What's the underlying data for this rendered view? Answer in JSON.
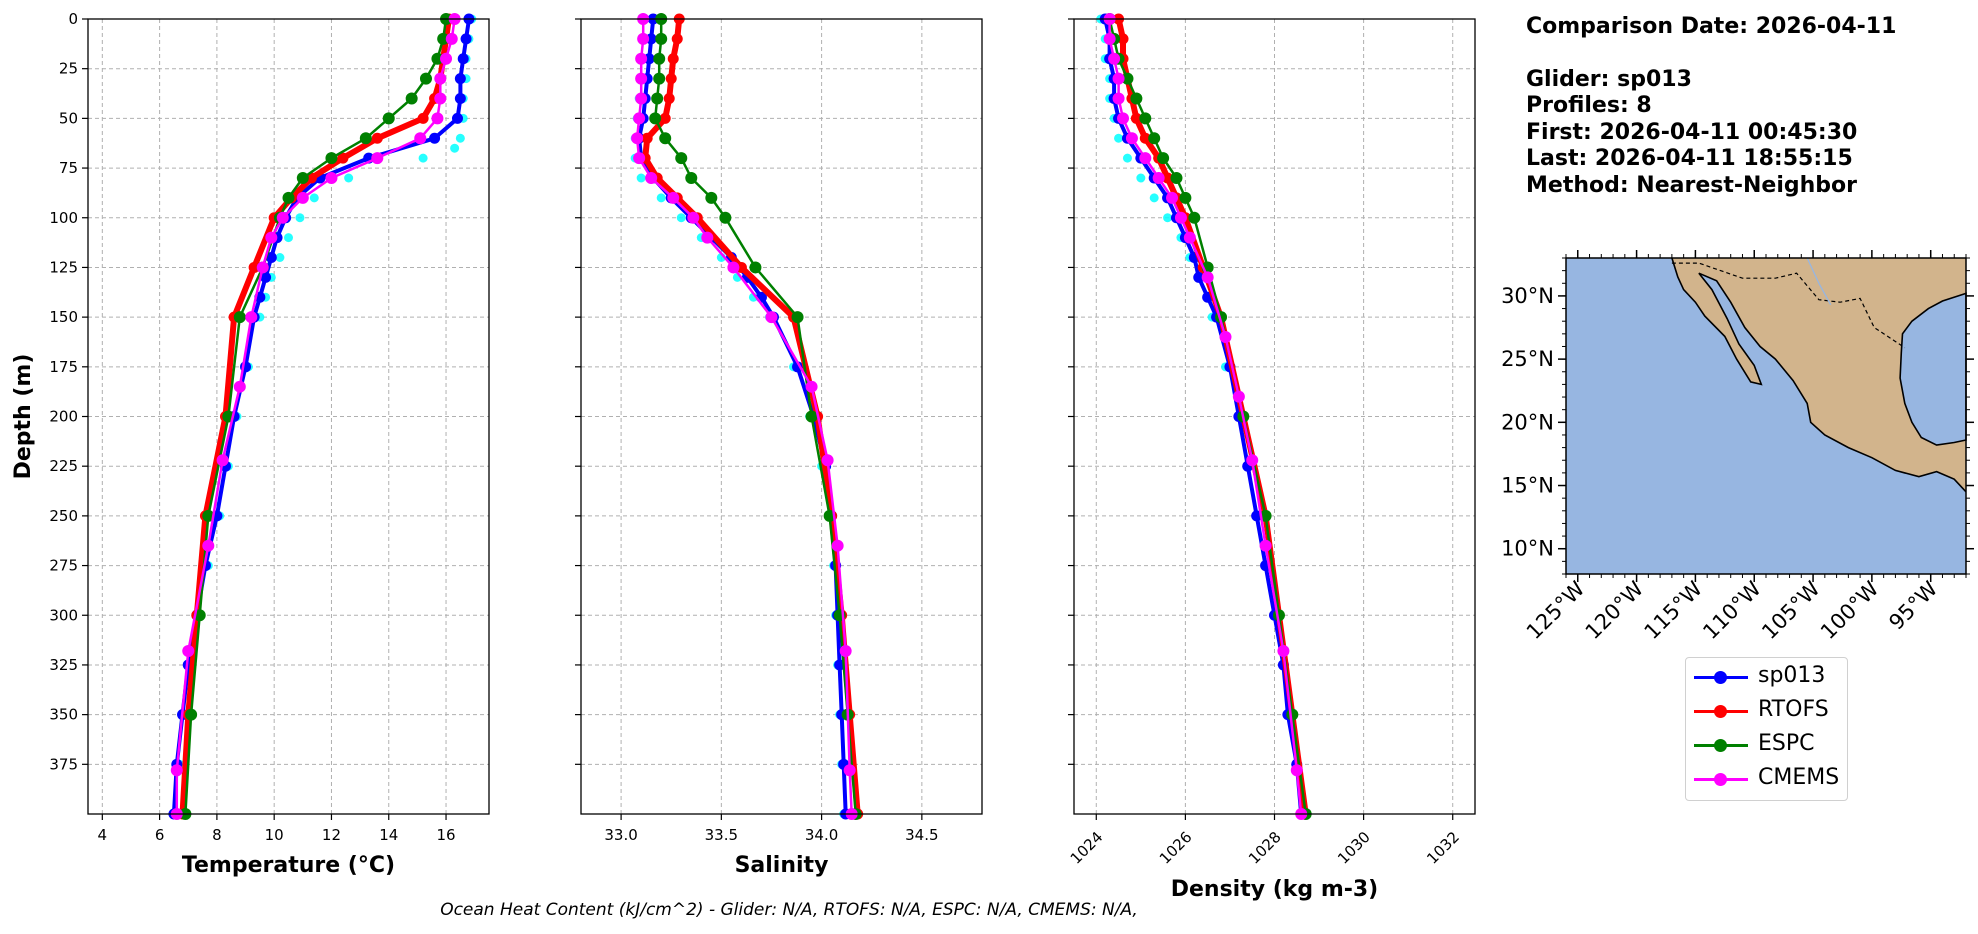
{
  "info": {
    "comparison_date": "Comparison Date: 2026-04-11",
    "glider": "Glider: sp013",
    "profiles": "Profiles: 8",
    "first": "First: 2026-04-11 00:45:30",
    "last": "Last: 2026-04-11 18:55:15",
    "method": "Method: Nearest-Neighbor"
  },
  "footer": "Ocean Heat Content (kJ/cm^2) - Glider: N/A,  RTOFS: N/A,  ESPC: N/A,  CMEMS: N/A,",
  "colors": {
    "sp013": "#0000ff",
    "RTOFS": "#ff0000",
    "ESPC": "#008000",
    "CMEMS": "#ff00ff",
    "glider_profiles": "#00ffff",
    "ocean": "#97b6e1",
    "land": "#d2b48c"
  },
  "legend": [
    {
      "name": "sp013",
      "color": "#0000ff"
    },
    {
      "name": "RTOFS",
      "color": "#ff0000"
    },
    {
      "name": "ESPC",
      "color": "#008000"
    },
    {
      "name": "CMEMS",
      "color": "#ff00ff"
    }
  ],
  "chart_data": [
    {
      "type": "line",
      "xlabel": "Temperature (°C)",
      "ylabel": "Depth (m)",
      "xlim": [
        3.5,
        17.5
      ],
      "ylim": [
        400,
        0
      ],
      "xticks": [
        4,
        6,
        8,
        10,
        12,
        14,
        16
      ],
      "yticks": [
        0,
        25,
        50,
        75,
        100,
        125,
        150,
        175,
        200,
        225,
        250,
        275,
        300,
        325,
        350,
        375
      ],
      "grid": true,
      "series": [
        {
          "name": "sp013",
          "depth": [
            0,
            10,
            20,
            30,
            40,
            50,
            60,
            70,
            80,
            90,
            100,
            110,
            120,
            130,
            140,
            150,
            175,
            200,
            225,
            250,
            275,
            300,
            325,
            350,
            375,
            400
          ],
          "values": [
            16.8,
            16.7,
            16.6,
            16.5,
            16.5,
            16.4,
            15.6,
            13.3,
            11.6,
            10.8,
            10.4,
            10.1,
            9.9,
            9.7,
            9.5,
            9.3,
            9.0,
            8.6,
            8.3,
            8.0,
            7.6,
            7.3,
            7.0,
            6.8,
            6.6,
            6.5
          ]
        },
        {
          "name": "RTOFS",
          "depth": [
            0,
            10,
            20,
            30,
            40,
            50,
            60,
            70,
            80,
            90,
            100,
            125,
            150,
            200,
            250,
            300,
            350,
            400
          ],
          "values": [
            16.1,
            16.0,
            15.9,
            15.8,
            15.6,
            15.2,
            13.6,
            12.4,
            11.3,
            10.6,
            10.0,
            9.3,
            8.6,
            8.3,
            7.6,
            7.3,
            7.0,
            6.8
          ]
        },
        {
          "name": "ESPC",
          "depth": [
            0,
            10,
            20,
            30,
            40,
            50,
            60,
            70,
            80,
            90,
            100,
            125,
            150,
            200,
            250,
            300,
            350,
            400
          ],
          "values": [
            16.0,
            15.9,
            15.7,
            15.3,
            14.8,
            14.0,
            13.2,
            12.0,
            11.0,
            10.5,
            10.2,
            9.6,
            8.8,
            8.4,
            7.7,
            7.4,
            7.1,
            6.9
          ]
        },
        {
          "name": "CMEMS",
          "depth": [
            0,
            10,
            20,
            30,
            40,
            50,
            60,
            70,
            80,
            90,
            100,
            110,
            125,
            150,
            185,
            222,
            265,
            318,
            378,
            400
          ],
          "values": [
            16.3,
            16.2,
            16.0,
            15.8,
            15.8,
            15.7,
            15.1,
            13.6,
            12.0,
            11.0,
            10.3,
            9.9,
            9.6,
            9.2,
            8.8,
            8.2,
            7.7,
            7.0,
            6.6,
            6.6
          ]
        },
        {
          "name": "glider profiles",
          "depth": [
            0,
            10,
            20,
            30,
            40,
            50,
            60,
            65,
            70,
            80,
            90,
            100,
            110,
            120,
            130,
            140,
            150,
            175,
            200,
            225,
            250,
            275,
            300,
            325,
            350,
            375,
            400
          ],
          "values": [
            16.9,
            16.8,
            16.7,
            16.7,
            16.6,
            16.6,
            16.5,
            16.3,
            15.2,
            12.6,
            11.4,
            10.9,
            10.5,
            10.2,
            9.9,
            9.7,
            9.5,
            9.1,
            8.7,
            8.4,
            8.1,
            7.7,
            7.4,
            7.1,
            6.9,
            6.7,
            6.6
          ]
        }
      ]
    },
    {
      "type": "line",
      "xlabel": "Salinity",
      "xlim": [
        32.8,
        34.8
      ],
      "ylim": [
        400,
        0
      ],
      "xticks": [
        33.0,
        33.5,
        34.0,
        34.5
      ],
      "grid": true,
      "series": [
        {
          "name": "sp013",
          "depth": [
            0,
            10,
            20,
            30,
            40,
            50,
            60,
            70,
            80,
            90,
            100,
            110,
            120,
            130,
            140,
            150,
            175,
            200,
            225,
            250,
            275,
            300,
            325,
            350,
            375,
            400
          ],
          "values": [
            33.16,
            33.15,
            33.14,
            33.13,
            33.12,
            33.11,
            33.09,
            33.1,
            33.16,
            33.25,
            33.35,
            33.45,
            33.55,
            33.63,
            33.7,
            33.76,
            33.88,
            33.96,
            34.02,
            34.05,
            34.07,
            34.08,
            34.09,
            34.1,
            34.11,
            34.12
          ]
        },
        {
          "name": "RTOFS",
          "depth": [
            0,
            10,
            20,
            30,
            40,
            50,
            60,
            70,
            80,
            90,
            100,
            125,
            150,
            200,
            250,
            300,
            350,
            400
          ],
          "values": [
            33.29,
            33.28,
            33.26,
            33.25,
            33.24,
            33.22,
            33.13,
            33.12,
            33.18,
            33.28,
            33.38,
            33.6,
            33.86,
            33.98,
            34.05,
            34.1,
            34.14,
            34.18
          ]
        },
        {
          "name": "ESPC",
          "depth": [
            0,
            10,
            20,
            30,
            40,
            50,
            60,
            70,
            80,
            90,
            100,
            125,
            150,
            200,
            250,
            300,
            350,
            400
          ],
          "values": [
            33.2,
            33.2,
            33.19,
            33.19,
            33.18,
            33.17,
            33.22,
            33.3,
            33.35,
            33.45,
            33.52,
            33.67,
            33.88,
            33.95,
            34.04,
            34.09,
            34.13,
            34.17
          ]
        },
        {
          "name": "CMEMS",
          "depth": [
            0,
            10,
            20,
            30,
            40,
            50,
            60,
            70,
            80,
            90,
            100,
            110,
            125,
            150,
            185,
            222,
            265,
            318,
            378,
            400
          ],
          "values": [
            33.11,
            33.11,
            33.1,
            33.1,
            33.1,
            33.09,
            33.08,
            33.09,
            33.15,
            33.26,
            33.36,
            33.43,
            33.56,
            33.75,
            33.95,
            34.03,
            34.08,
            34.12,
            34.14,
            34.15
          ]
        },
        {
          "name": "glider profiles",
          "depth": [
            0,
            10,
            20,
            30,
            40,
            50,
            60,
            70,
            80,
            90,
            100,
            110,
            120,
            130,
            140,
            150,
            175,
            200,
            225,
            250,
            275,
            300,
            325,
            350,
            375,
            400
          ],
          "values": [
            33.12,
            33.11,
            33.1,
            33.1,
            33.09,
            33.08,
            33.07,
            33.07,
            33.1,
            33.2,
            33.3,
            33.4,
            33.5,
            33.58,
            33.66,
            33.74,
            33.86,
            33.94,
            34.0,
            34.04,
            34.06,
            34.07,
            34.08,
            34.09,
            34.1,
            34.11
          ]
        }
      ]
    },
    {
      "type": "line",
      "xlabel": "Density (kg m-3)",
      "xlim": [
        1023.5,
        1032.5
      ],
      "ylim": [
        400,
        0
      ],
      "xticks": [
        1024,
        1026,
        1028,
        1030,
        1032
      ],
      "grid": true,
      "series": [
        {
          "name": "sp013",
          "depth": [
            0,
            10,
            20,
            30,
            40,
            50,
            60,
            70,
            80,
            90,
            100,
            110,
            120,
            130,
            140,
            150,
            175,
            200,
            225,
            250,
            275,
            300,
            325,
            350,
            375,
            400
          ],
          "values": [
            1024.2,
            1024.3,
            1024.3,
            1024.4,
            1024.4,
            1024.5,
            1024.7,
            1025.0,
            1025.3,
            1025.6,
            1025.8,
            1026.0,
            1026.2,
            1026.3,
            1026.5,
            1026.7,
            1027.0,
            1027.2,
            1027.4,
            1027.6,
            1027.8,
            1028.0,
            1028.2,
            1028.3,
            1028.5,
            1028.6
          ]
        },
        {
          "name": "RTOFS",
          "depth": [
            0,
            10,
            20,
            30,
            40,
            50,
            60,
            70,
            80,
            90,
            100,
            125,
            150,
            200,
            250,
            300,
            350,
            400
          ],
          "values": [
            1024.5,
            1024.6,
            1024.6,
            1024.7,
            1024.8,
            1024.9,
            1025.1,
            1025.4,
            1025.6,
            1025.8,
            1026.0,
            1026.4,
            1026.8,
            1027.3,
            1027.8,
            1028.1,
            1028.4,
            1028.7
          ]
        },
        {
          "name": "ESPC",
          "depth": [
            0,
            10,
            20,
            30,
            40,
            50,
            60,
            70,
            80,
            90,
            100,
            125,
            150,
            200,
            250,
            300,
            350,
            400
          ],
          "values": [
            1024.3,
            1024.4,
            1024.5,
            1024.7,
            1024.9,
            1025.1,
            1025.3,
            1025.5,
            1025.8,
            1026.0,
            1026.2,
            1026.5,
            1026.8,
            1027.3,
            1027.8,
            1028.1,
            1028.4,
            1028.7
          ]
        },
        {
          "name": "CMEMS",
          "depth": [
            0,
            10,
            20,
            30,
            40,
            50,
            60,
            70,
            80,
            90,
            100,
            110,
            130,
            160,
            190,
            222,
            265,
            318,
            378,
            400
          ],
          "values": [
            1024.3,
            1024.3,
            1024.4,
            1024.5,
            1024.5,
            1024.6,
            1024.8,
            1025.1,
            1025.4,
            1025.7,
            1025.9,
            1026.1,
            1026.5,
            1026.9,
            1027.2,
            1027.5,
            1027.8,
            1028.2,
            1028.5,
            1028.6
          ]
        },
        {
          "name": "glider profiles",
          "depth": [
            0,
            10,
            20,
            30,
            40,
            50,
            60,
            70,
            80,
            90,
            100,
            110,
            120,
            130,
            140,
            150,
            175,
            200,
            225,
            250,
            275,
            300,
            325,
            350,
            375,
            400
          ],
          "values": [
            1024.1,
            1024.2,
            1024.2,
            1024.3,
            1024.3,
            1024.4,
            1024.5,
            1024.7,
            1025.0,
            1025.3,
            1025.6,
            1025.9,
            1026.1,
            1026.3,
            1026.5,
            1026.6,
            1026.9,
            1027.2,
            1027.4,
            1027.6,
            1027.8,
            1028.0,
            1028.2,
            1028.3,
            1028.5,
            1028.6
          ]
        }
      ]
    }
  ],
  "map": {
    "lat_ticks": [
      "10°N",
      "15°N",
      "20°N",
      "25°N",
      "30°N"
    ],
    "lat_values": [
      10,
      15,
      20,
      25,
      30
    ],
    "lon_ticks": [
      "125°W",
      "120°W",
      "115°W",
      "110°W",
      "105°W",
      "100°W",
      "95°W"
    ],
    "lon_values": [
      -125,
      -120,
      -115,
      -110,
      -105,
      -100,
      -95
    ],
    "lon_range": [
      -126,
      -92
    ],
    "lat_range": [
      8,
      33
    ]
  }
}
